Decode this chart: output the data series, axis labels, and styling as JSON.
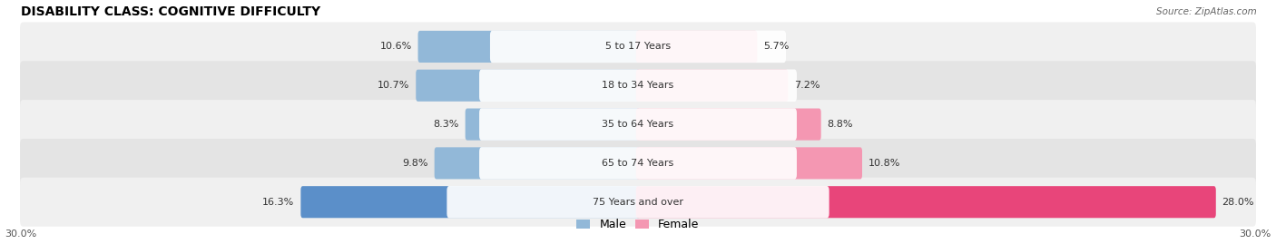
{
  "title": "DISABILITY CLASS: COGNITIVE DIFFICULTY",
  "source": "Source: ZipAtlas.com",
  "categories": [
    "5 to 17 Years",
    "18 to 34 Years",
    "35 to 64 Years",
    "65 to 74 Years",
    "75 Years and over"
  ],
  "male_values": [
    10.6,
    10.7,
    8.3,
    9.8,
    16.3
  ],
  "female_values": [
    5.7,
    7.2,
    8.8,
    10.8,
    28.0
  ],
  "male_color_normal": "#92b8d8",
  "female_color_normal": "#f497b2",
  "female_color_highlight": "#e8457a",
  "male_color_highlight": "#5b8fc9",
  "axis_max": 30.0,
  "row_bg_color_odd": "#f0f0f0",
  "row_bg_color_even": "#e4e4e4",
  "title_fontsize": 10,
  "label_fontsize": 8,
  "value_fontsize": 8,
  "tick_fontsize": 8,
  "legend_fontsize": 9,
  "category_label_fontsize": 8
}
